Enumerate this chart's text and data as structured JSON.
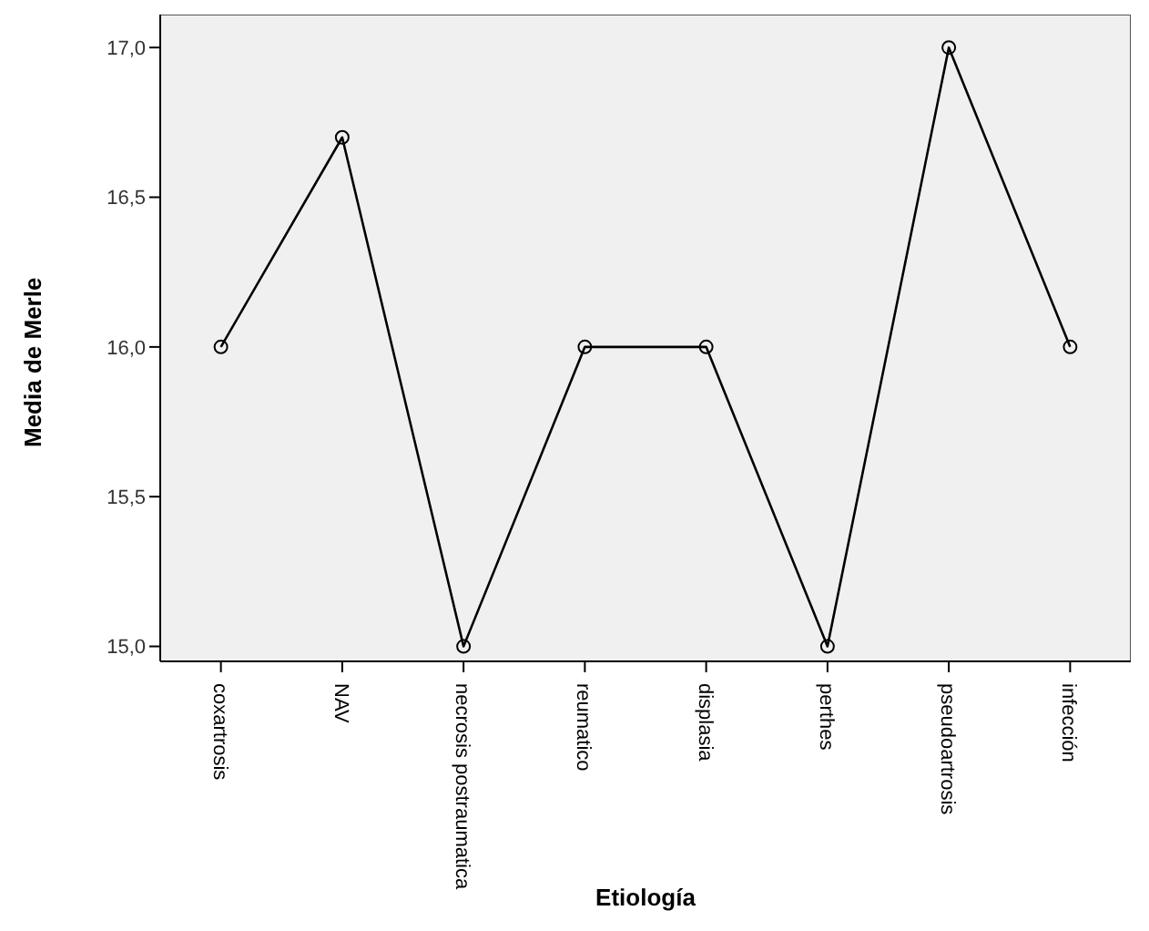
{
  "chart_data": {
    "type": "line",
    "xlabel": "Etiología",
    "ylabel": "Media de Merle",
    "categories": [
      "coxartrosis",
      "NAV",
      "necrosis postraumatica",
      "reumatico",
      "displasia",
      "perthes",
      "pseudoartrosis",
      "infección"
    ],
    "series": [
      {
        "color": "#000000",
        "values": [
          16.0,
          16.7,
          15.0,
          16.0,
          16.0,
          15.0,
          17.0,
          16.0
        ]
      }
    ],
    "ylim": [
      14.95,
      17.11
    ],
    "yticks": [
      {
        "value": 15,
        "label": "15,0"
      },
      {
        "value": 15.5,
        "label": "15,5"
      },
      {
        "value": 16,
        "label": "16,0"
      },
      {
        "value": 16.5,
        "label": "16,5"
      },
      {
        "value": 17,
        "label": "17,0"
      }
    ],
    "grid": false,
    "marker": "circle",
    "line_style": "solid",
    "legend": false
  }
}
